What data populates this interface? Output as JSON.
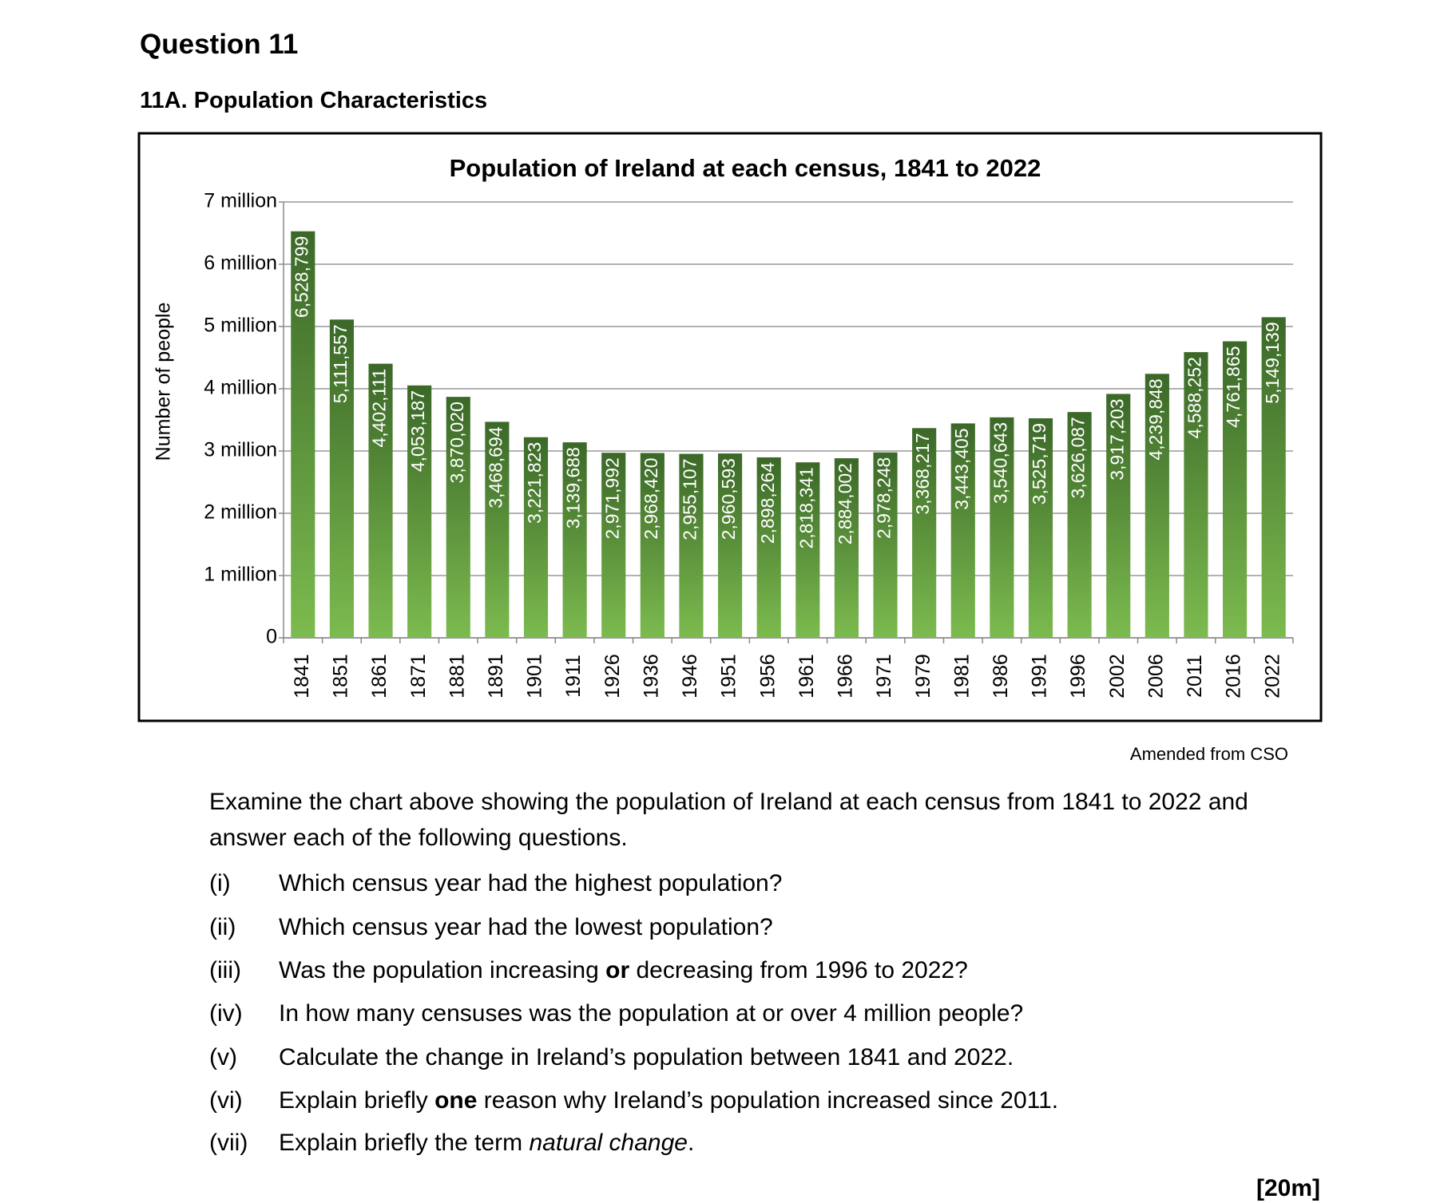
{
  "header": {
    "title": "Question 11",
    "section": "11A.  Population Characteristics"
  },
  "chart_data": {
    "type": "bar",
    "title": "Population of Ireland at each census, 1841 to 2022",
    "y_label": "Number of people",
    "categories": [
      "1841",
      "1851",
      "1861",
      "1871",
      "1881",
      "1891",
      "1901",
      "1911",
      "1926",
      "1936",
      "1946",
      "1951",
      "1956",
      "1961",
      "1966",
      "1971",
      "1979",
      "1981",
      "1986",
      "1991",
      "1996",
      "2002",
      "2006",
      "2011",
      "2016",
      "2022"
    ],
    "values": [
      6528799,
      5111557,
      4402111,
      4053187,
      3870020,
      3468694,
      3221823,
      3139688,
      2971992,
      2968420,
      2955107,
      2960593,
      2898264,
      2818341,
      2884002,
      2978248,
      3368217,
      3443405,
      3540643,
      3525719,
      3626087,
      3917203,
      4239848,
      4588252,
      4761865,
      5149139
    ],
    "value_labels": [
      "6,528,799",
      "5,111,557",
      "4,402,111",
      "4,053,187",
      "3,870,020",
      "3,468,694",
      "3,221,823",
      "3,139,688",
      "2,971,992",
      "2,968,420",
      "2,955,107",
      "2,960,593",
      "2,898,264",
      "2,818,341",
      "2,884,002",
      "2,978,248",
      "3,368,217",
      "3,443,405",
      "3,540,643",
      "3,525,719",
      "3,626,087",
      "3,917,203",
      "4,239,848",
      "4,588,252",
      "4,761,865",
      "5,149,139"
    ],
    "gradient": [
      "#3b6828",
      "#7cbb4f"
    ],
    "ylim": [
      0,
      7000000
    ],
    "yticks": [
      0,
      {
        "value": 1000000,
        "label": "1 million"
      },
      {
        "value": 2000000,
        "label": "2 million"
      },
      {
        "value": 3000000,
        "label": "3 million"
      },
      {
        "value": 4000000,
        "label": "4 million"
      },
      {
        "value": 5000000,
        "label": "5 million"
      },
      {
        "value": 6000000,
        "label": "6 million"
      },
      {
        "value": 7000000,
        "label": "7 million"
      }
    ],
    "grid": true
  },
  "source": "Amended from CSO",
  "intro": "Examine the chart above showing the population of Ireland at each census from 1841 to 2022 and answer each of the following questions.",
  "questions": [
    {
      "label": "(i)",
      "parts": [
        {
          "text": "Which census year had the highest population?"
        }
      ]
    },
    {
      "label": "(ii)",
      "parts": [
        {
          "text": "Which census year had the lowest population?"
        }
      ]
    },
    {
      "label": "(iii)",
      "parts": [
        {
          "text": "Was the population increasing "
        },
        {
          "text": "or",
          "bold": true
        },
        {
          "text": " decreasing from 1996 to 2022?"
        }
      ]
    },
    {
      "label": "(iv)",
      "parts": [
        {
          "text": "In how many censuses was the population at or over 4 million people?"
        }
      ]
    },
    {
      "label": "(v)",
      "parts": [
        {
          "text": "Calculate the change in Ireland’s population between 1841 and 2022."
        }
      ]
    },
    {
      "label": "(vi)",
      "parts": [
        {
          "text": "Explain briefly "
        },
        {
          "text": "one",
          "bold": true
        },
        {
          "text": " reason why Ireland’s population increased since 2011."
        }
      ]
    },
    {
      "label": "(vii)",
      "parts": [
        {
          "text": "Explain briefly the term "
        },
        {
          "text": "natural change",
          "italic": true
        },
        {
          "text": "."
        }
      ]
    }
  ],
  "marks": "[20m]"
}
